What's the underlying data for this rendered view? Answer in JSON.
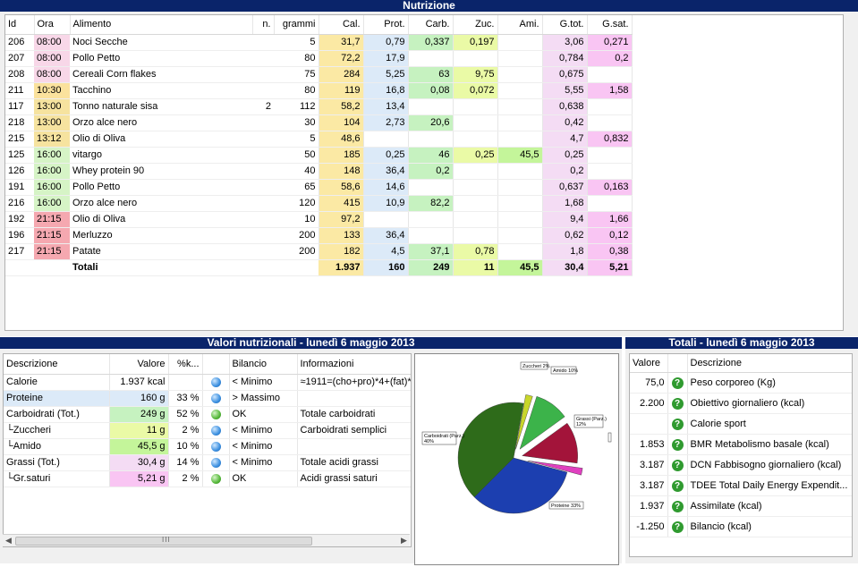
{
  "nutrizione": {
    "title": "Nutrizione",
    "columns": [
      "Id",
      "Ora",
      "Alimento",
      "n.",
      "grammi",
      "Cal.",
      "Prot.",
      "Carb.",
      "Zuc.",
      "Ami.",
      "G.tot.",
      "G.sat."
    ],
    "rows": [
      [
        "206",
        "08:00",
        "Noci Secche",
        "",
        "5",
        "31,7",
        "0,79",
        "0,337",
        "0,197",
        "",
        "3,06",
        "0,271"
      ],
      [
        "207",
        "08:00",
        "Pollo Petto",
        "",
        "80",
        "72,2",
        "17,9",
        "",
        "",
        "",
        "0,784",
        "0,2"
      ],
      [
        "208",
        "08:00",
        "Cereali Corn flakes",
        "",
        "75",
        "284",
        "5,25",
        "63",
        "9,75",
        "",
        "0,675",
        ""
      ],
      [
        "211",
        "10:30",
        "Tacchino",
        "",
        "80",
        "119",
        "16,8",
        "0,08",
        "0,072",
        "",
        "5,55",
        "1,58"
      ],
      [
        "117",
        "13:00",
        "Tonno naturale sisa",
        "2",
        "112",
        "58,2",
        "13,4",
        "",
        "",
        "",
        "0,638",
        ""
      ],
      [
        "218",
        "13:00",
        "Orzo alce nero",
        "",
        "30",
        "104",
        "2,73",
        "20,6",
        "",
        "",
        "0,42",
        ""
      ],
      [
        "215",
        "13:12",
        "Olio di Oliva",
        "",
        "5",
        "48,6",
        "",
        "",
        "",
        "",
        "4,7",
        "0,832"
      ],
      [
        "125",
        "16:00",
        "vitargo",
        "",
        "50",
        "185",
        "0,25",
        "46",
        "0,25",
        "45,5",
        "0,25",
        ""
      ],
      [
        "126",
        "16:00",
        "Whey protein 90",
        "",
        "40",
        "148",
        "36,4",
        "0,2",
        "",
        "",
        "0,2",
        ""
      ],
      [
        "191",
        "16:00",
        "Pollo Petto",
        "",
        "65",
        "58,6",
        "14,6",
        "",
        "",
        "",
        "0,637",
        "0,163"
      ],
      [
        "216",
        "16:00",
        "Orzo alce nero",
        "",
        "120",
        "415",
        "10,9",
        "82,2",
        "",
        "",
        "1,68",
        ""
      ],
      [
        "192",
        "21:15",
        "Olio di Oliva",
        "",
        "10",
        "97,2",
        "",
        "",
        "",
        "",
        "9,4",
        "1,66"
      ],
      [
        "196",
        "21:15",
        "Merluzzo",
        "",
        "200",
        "133",
        "36,4",
        "",
        "",
        "",
        "0,62",
        "0,12"
      ],
      [
        "217",
        "21:15",
        "Patate",
        "",
        "200",
        "182",
        "4,5",
        "37,1",
        "0,78",
        "",
        "1,8",
        "0,38"
      ]
    ],
    "totals_label": "Totali",
    "totals": [
      "1.937",
      "160",
      "249",
      "11",
      "45,5",
      "30,4",
      "5,21"
    ]
  },
  "valori": {
    "title": "Valori nutrizionali - lunedì 6 maggio 2013",
    "columns": [
      "Descrizione",
      "Valore",
      "%k...",
      "",
      "Bilancio",
      "Informazioni"
    ],
    "rows": [
      {
        "desc": "Calorie",
        "valore": "1.937 kcal",
        "pct": "",
        "dot": "blue",
        "bilancio": "< Minimo",
        "info": "≈1911=(cho+pro)*4+(fat)*"
      },
      {
        "desc": "Proteine",
        "valore": "160 g",
        "pct": "33 %",
        "dot": "blue",
        "bilancio": "> Massimo",
        "info": ""
      },
      {
        "desc": "Carboidrati (Tot.)",
        "valore": "249 g",
        "pct": "52 %",
        "dot": "green",
        "bilancio": "OK",
        "info": "Totale carboidrati"
      },
      {
        "desc": "└Zuccheri",
        "valore": "11 g",
        "pct": "2 %",
        "dot": "blue",
        "bilancio": "< Minimo",
        "info": "Carboidrati semplici"
      },
      {
        "desc": "└Amido",
        "valore": "45,5 g",
        "pct": "10 %",
        "dot": "blue",
        "bilancio": "< Minimo",
        "info": ""
      },
      {
        "desc": "Grassi (Tot.)",
        "valore": "30,4 g",
        "pct": "14 %",
        "dot": "blue",
        "bilancio": "< Minimo",
        "info": "Totale acidi grassi"
      },
      {
        "desc": "└Gr.saturi",
        "valore": "5,21 g",
        "pct": "2 %",
        "dot": "green",
        "bilancio": "OK",
        "info": "Acidi grassi saturi"
      }
    ],
    "scroll_grip": "III"
  },
  "chart_data": {
    "type": "pie",
    "slices": [
      {
        "label": "Proteine 33%",
        "value": 33,
        "color": "#1c3fb0"
      },
      {
        "label": "Carboidrati (Parz.) 40%",
        "value": 40,
        "color": "#2e6b1a"
      },
      {
        "label": "Zuccheri 2%",
        "value": 2,
        "color": "#c8d62a"
      },
      {
        "label": "Amido 10%",
        "value": 10,
        "color": "#3cb34a"
      },
      {
        "label": "Grassi (Parz.) 12%",
        "value": 12,
        "color": "#a3143a"
      },
      {
        "label": "",
        "value": 2,
        "color": "#e040c0"
      }
    ],
    "labels_text": {
      "proteine": "Proteine 33%",
      "carb": "Carboidrati (Parz.) 40%",
      "zuc": "Zuccheri 2%",
      "ami": "Amido 10%",
      "grassi": "Grassi (Parz.) 12%"
    }
  },
  "totali": {
    "title": "Totali - lunedì 6 maggio 2013",
    "columns": [
      "Valore",
      "",
      "Descrizione"
    ],
    "rows": [
      {
        "valore": "75,0",
        "desc": "Peso corporeo (Kg)"
      },
      {
        "valore": "2.200",
        "desc": "Obiettivo giornaliero (kcal)"
      },
      {
        "valore": "",
        "desc": "Calorie sport"
      },
      {
        "valore": "1.853",
        "desc": "BMR Metabolismo basale (kcal)"
      },
      {
        "valore": "3.187",
        "desc": "DCN Fabbisogno giornaliero (kcal)"
      },
      {
        "valore": "3.187",
        "desc": "TDEE Total Daily Energy Expendit..."
      },
      {
        "valore": "1.937",
        "desc": "Assimilate (kcal)"
      },
      {
        "valore": "-1.250",
        "desc": "Bilancio (kcal)"
      }
    ],
    "help_icon": "?"
  },
  "colors": {
    "title_bg": "#0a246a",
    "cal": "#fbe9a4",
    "prot": "#dceaf8",
    "carb": "#c6f2c0",
    "zuc": "#eafaa6",
    "ami": "#c4f59a",
    "gtot": "#f4dcf4",
    "gsat": "#f9c5f3",
    "ora_morning": "#f8d7e8",
    "ora_1030": "#fbe29d",
    "ora_1300": "#f6e39f",
    "ora_1600": "#d6f4c6",
    "ora_2115": "#f5a8b0"
  }
}
